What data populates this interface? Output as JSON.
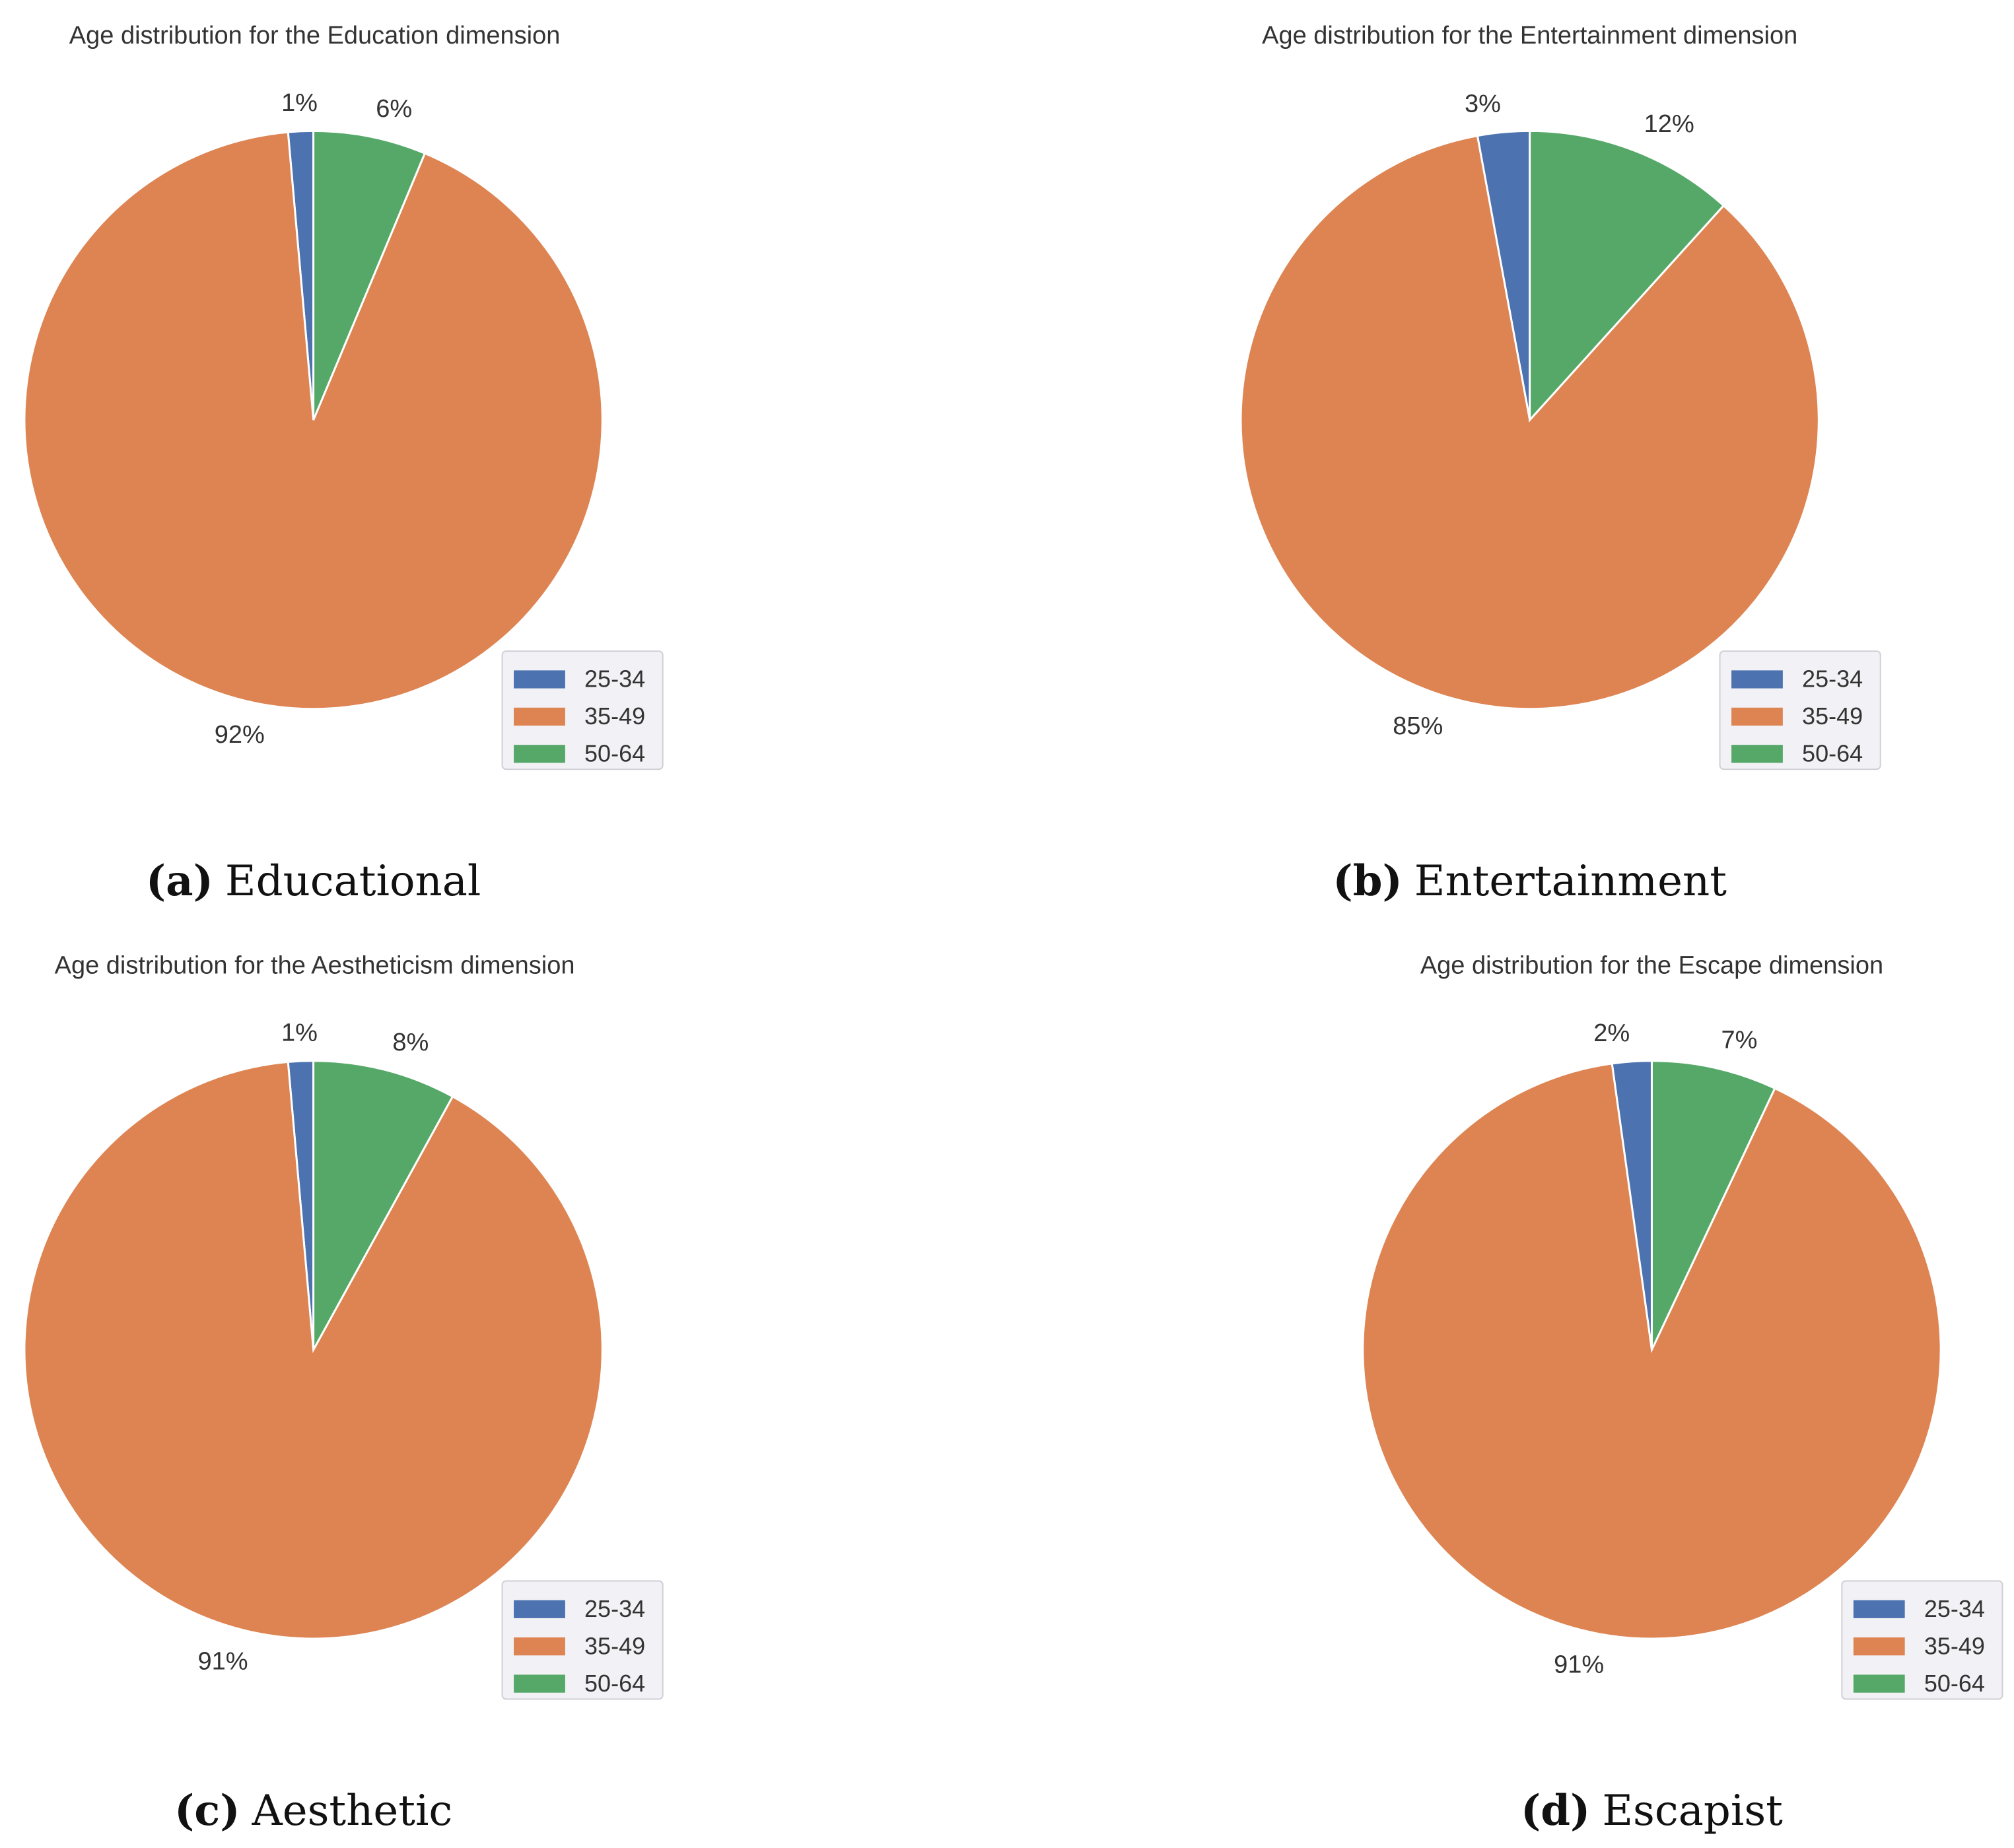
{
  "colors": {
    "25-34": "#4c72b0",
    "35-49": "#dd8452",
    "50-64": "#55a868"
  },
  "chart_data": [
    {
      "type": "pie",
      "title": "Age distribution for the Education dimension",
      "caption_letter": "(a)",
      "caption": "Educational",
      "labels": [
        "25-34",
        "35-49",
        "50-64"
      ],
      "values": [
        1.4,
        92.3,
        6.3
      ],
      "pct_labels": [
        "1%",
        "92%",
        "6%"
      ],
      "legend_position": "lower-right"
    },
    {
      "type": "pie",
      "title": "Age distribution for the Entertainment dimension",
      "caption_letter": "(b)",
      "caption": "Entertainment",
      "labels": [
        "25-34",
        "35-49",
        "50-64"
      ],
      "values": [
        2.9,
        85.4,
        11.7
      ],
      "pct_labels": [
        "3%",
        "85%",
        "12%"
      ],
      "legend_position": "lower-right"
    },
    {
      "type": "pie",
      "title": "Age distribution for the Aestheticism dimension",
      "caption_letter": "(c)",
      "caption": "Aesthetic",
      "labels": [
        "25-34",
        "35-49",
        "50-64"
      ],
      "values": [
        1.4,
        90.6,
        8.0
      ],
      "pct_labels": [
        "1%",
        "91%",
        "8%"
      ],
      "legend_position": "lower-right"
    },
    {
      "type": "pie",
      "title": "Age distribution for the Escape dimension",
      "caption_letter": "(d)",
      "caption": "Escapist",
      "labels": [
        "25-34",
        "35-49",
        "50-64"
      ],
      "values": [
        2.2,
        90.8,
        7.0
      ],
      "pct_labels": [
        "2%",
        "91%",
        "7%"
      ],
      "legend_position": "lower-right"
    }
  ]
}
